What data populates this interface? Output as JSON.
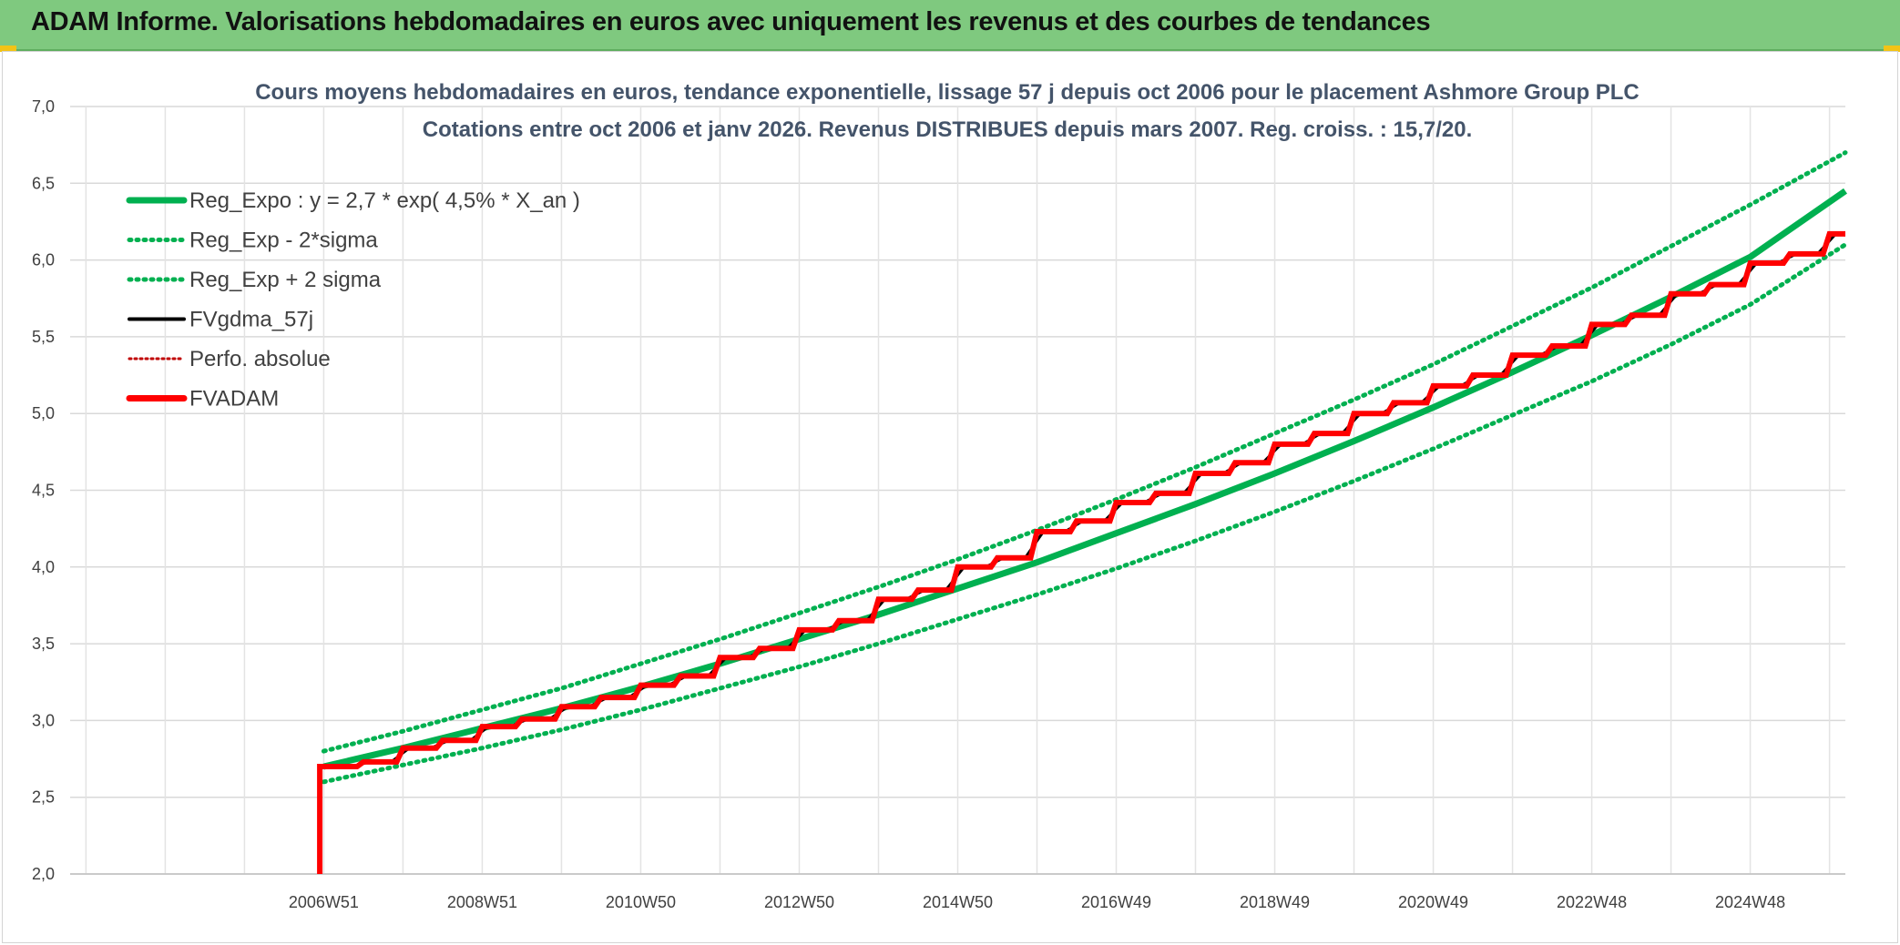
{
  "header": {
    "title": "ADAM Informe. Valorisations hebdomadaires en euros avec uniquement les revenus et des courbes de tendances"
  },
  "colors": {
    "header_bg": "#7fc97f",
    "reg_expo": "#00b050",
    "fvgdma": "#000000",
    "perfo": "#c00000",
    "fvadam": "#ff0000",
    "corner": "#f2c316"
  },
  "chart_data": {
    "type": "line",
    "title": "Cours moyens hebdomadaires en euros, tendance exponentielle, lissage 57 j depuis oct 2006 pour le placement Ashmore Group PLC",
    "subtitle": "Cotations entre oct 2006 et janv 2026. Revenus DISTRIBUES depuis mars 2007. Reg. croiss. : 15,7/20.",
    "ylim": [
      2.0,
      7.0
    ],
    "y_ticks": [
      "2,0",
      "2,5",
      "3,0",
      "3,5",
      "4,0",
      "4,5",
      "5,0",
      "5,5",
      "6,0",
      "6,5",
      "7,0"
    ],
    "x_ticks": [
      "2006W51",
      "2008W51",
      "2010W50",
      "2012W50",
      "2014W50",
      "2016W49",
      "2018W49",
      "2020W49",
      "2022W48",
      "2024W48"
    ],
    "x_range_years": [
      -3.2,
      19.2
    ],
    "grid": true,
    "legend_position": "top-left",
    "legend": [
      {
        "name": "Reg_Expo : y = 2,7 * exp( 4,5% *  X_an )",
        "style": "solid-thick-green"
      },
      {
        "name": "Reg_Exp - 2*sigma",
        "style": "dotted-green"
      },
      {
        "name": "Reg_Exp + 2 sigma",
        "style": "dotted-green"
      },
      {
        "name": "FVgdma_57j",
        "style": "solid-black"
      },
      {
        "name": "Perfo. absolue",
        "style": "dotted-red"
      },
      {
        "name": "FVADAM",
        "style": "solid-thick-red"
      }
    ],
    "series": [
      {
        "name": "Reg_Expo : y = 2,7 * exp( 4,5% *  X_an )",
        "x": [
          0,
          1,
          2,
          3,
          4,
          5,
          6,
          7,
          8,
          9,
          10,
          11,
          12,
          13,
          14,
          15,
          16,
          17,
          18,
          19.2
        ],
        "y": [
          2.7,
          2.82,
          2.95,
          3.08,
          3.22,
          3.37,
          3.53,
          3.69,
          3.86,
          4.03,
          4.22,
          4.41,
          4.61,
          4.82,
          5.04,
          5.27,
          5.51,
          5.76,
          6.02,
          6.45
        ]
      },
      {
        "name": "Reg_Exp - 2*sigma",
        "x": [
          0,
          1,
          2,
          3,
          4,
          5,
          6,
          7,
          8,
          9,
          10,
          11,
          12,
          13,
          14,
          15,
          16,
          17,
          18,
          19.2
        ],
        "y": [
          2.6,
          2.71,
          2.82,
          2.94,
          3.07,
          3.21,
          3.35,
          3.5,
          3.66,
          3.82,
          3.99,
          4.17,
          4.36,
          4.56,
          4.77,
          4.99,
          5.21,
          5.45,
          5.71,
          6.1
        ]
      },
      {
        "name": "Reg_Exp + 2 sigma",
        "x": [
          0,
          1,
          2,
          3,
          4,
          5,
          6,
          7,
          8,
          9,
          10,
          11,
          12,
          13,
          14,
          15,
          16,
          17,
          18,
          19.2
        ],
        "y": [
          2.8,
          2.93,
          3.07,
          3.21,
          3.37,
          3.53,
          3.7,
          3.87,
          4.05,
          4.24,
          4.44,
          4.65,
          4.87,
          5.09,
          5.32,
          5.57,
          5.82,
          6.09,
          6.36,
          6.7
        ]
      },
      {
        "name": "FVADAM",
        "steps": {
          "start_x": -0.05,
          "start_y": 2.0,
          "first_x": 0,
          "first_y": 2.7,
          "step_x": [
            0.5,
            1.0,
            1.5,
            2.0,
            2.5,
            3.0,
            3.5,
            4.0,
            4.5,
            5.0,
            5.5,
            6.0,
            6.5,
            7.0,
            7.5,
            8.0,
            8.5,
            9.0,
            9.5,
            10.0,
            10.5,
            11.0,
            11.5,
            12.0,
            12.5,
            13.0,
            13.5,
            14.0,
            14.5,
            15.0,
            15.5,
            16.0,
            16.5,
            17.0,
            17.5,
            18.0,
            18.5,
            19.0
          ],
          "step_y": [
            2.73,
            2.82,
            2.87,
            2.96,
            3.01,
            3.09,
            3.15,
            3.23,
            3.29,
            3.41,
            3.47,
            3.59,
            3.65,
            3.79,
            3.85,
            4.0,
            4.06,
            4.23,
            4.3,
            4.42,
            4.48,
            4.61,
            4.68,
            4.8,
            4.87,
            5.0,
            5.07,
            5.18,
            5.25,
            5.38,
            5.44,
            5.58,
            5.64,
            5.78,
            5.84,
            5.98,
            6.04,
            6.17
          ],
          "end_x": 19.2
        }
      }
    ]
  }
}
